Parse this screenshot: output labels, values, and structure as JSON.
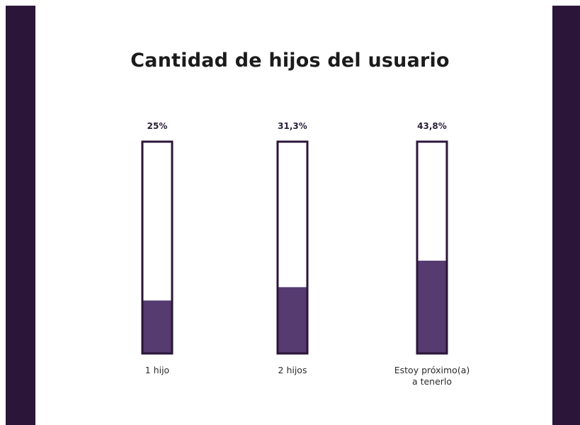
{
  "colors": {
    "side_bar": "#2b1639",
    "bar_fill": "#553b70",
    "bar_outline": "#2b1639",
    "background": "#ffffff"
  },
  "chart_data": {
    "type": "bar",
    "title": "Cantidad de hijos del usuario",
    "categories": [
      [
        "1 hijo"
      ],
      [
        "2 hijos"
      ],
      [
        "Estoy próximo(a)",
        "a tenerlo"
      ]
    ],
    "values": [
      25,
      31.3,
      43.8
    ],
    "value_labels": [
      "25%",
      "31,3%",
      "43,8%"
    ],
    "ylim": [
      0,
      100
    ],
    "unit": "%",
    "grid": false,
    "legend": "none"
  }
}
